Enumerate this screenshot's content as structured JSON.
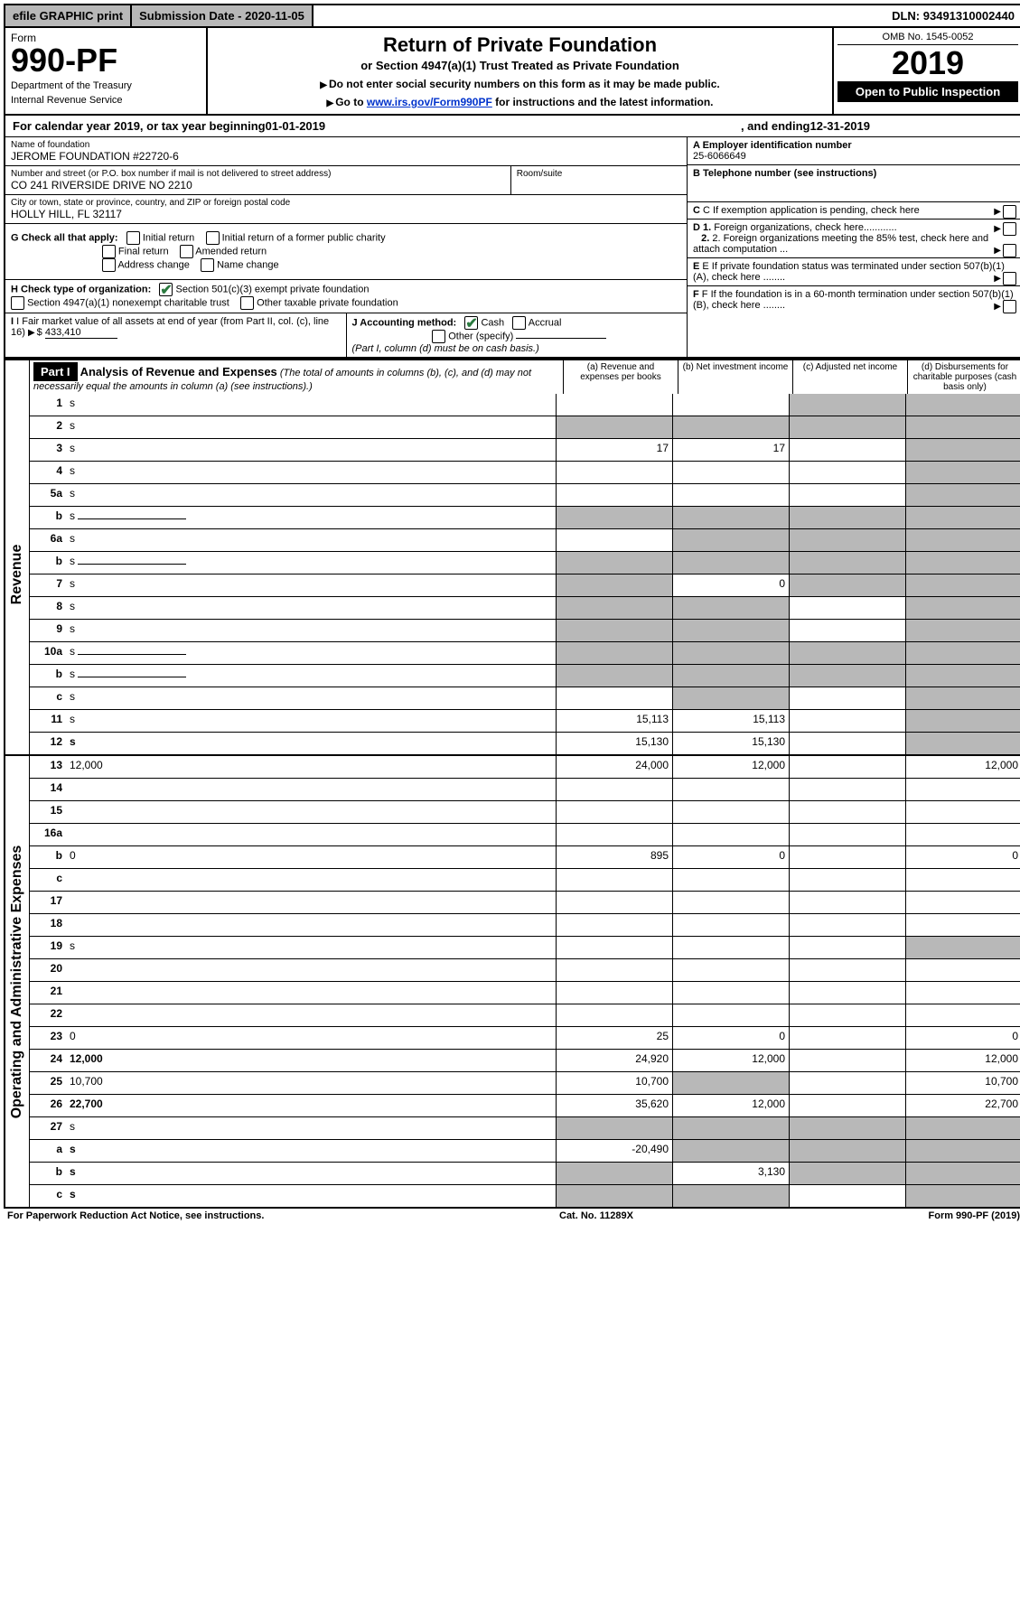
{
  "topbar": {
    "efile": "efile GRAPHIC print",
    "subdate_lbl": "Submission Date - ",
    "subdate": "2020-11-05",
    "dln_lbl": "DLN: ",
    "dln": "93491310002440"
  },
  "header": {
    "form": "Form",
    "number": "990-PF",
    "dept": "Department of the Treasury",
    "irs": "Internal Revenue Service",
    "title": "Return of Private Foundation",
    "subtitle": "or Section 4947(a)(1) Trust Treated as Private Foundation",
    "note1": "Do not enter social security numbers on this form as it may be made public.",
    "note2_pre": "Go to ",
    "note2_link": "www.irs.gov/Form990PF",
    "note2_post": " for instructions and the latest information.",
    "omb": "OMB No. 1545-0052",
    "year": "2019",
    "open": "Open to Public Inspection"
  },
  "cal": {
    "pre": "For calendar year 2019, or tax year beginning ",
    "begin": "01-01-2019",
    "mid": ", and ending ",
    "end": "12-31-2019"
  },
  "info": {
    "name_lbl": "Name of foundation",
    "name": "JEROME FOUNDATION #22720-6",
    "addr_lbl": "Number and street (or P.O. box number if mail is not delivered to street address)",
    "addr": "CO 241 RIVERSIDE DRIVE NO 2210",
    "room_lbl": "Room/suite",
    "city_lbl": "City or town, state or province, country, and ZIP or foreign postal code",
    "city": "HOLLY HILL, FL  32117",
    "a_lbl": "A Employer identification number",
    "a_val": "25-6066649",
    "b_lbl": "B Telephone number (see instructions)",
    "c_lbl": "C If exemption application is pending, check here",
    "d1_lbl": "D 1. Foreign organizations, check here............",
    "d2_lbl": "2. Foreign organizations meeting the 85% test, check here and attach computation ...",
    "e_lbl": "E  If private foundation status was terminated under section 507(b)(1)(A), check here ........",
    "f_lbl": "F  If the foundation is in a 60-month termination under section 507(b)(1)(B), check here ........",
    "g_lbl": "G Check all that apply:",
    "g_opts": [
      "Initial return",
      "Initial return of a former public charity",
      "Final return",
      "Amended return",
      "Address change",
      "Name change"
    ],
    "h_lbl": "H Check type of organization:",
    "h_opts": [
      "Section 501(c)(3) exempt private foundation",
      "Section 4947(a)(1) nonexempt charitable trust",
      "Other taxable private foundation"
    ],
    "i_lbl": "I Fair market value of all assets at end of year (from Part II, col. (c), line 16)",
    "i_val": "433,410",
    "j_lbl": "J Accounting method:",
    "j_opts": [
      "Cash",
      "Accrual",
      "Other (specify)"
    ],
    "j_note": "(Part I, column (d) must be on cash basis.)"
  },
  "part1": {
    "label": "Part I",
    "title": "Analysis of Revenue and Expenses",
    "subtitle": "(The total of amounts in columns (b), (c), and (d) may not necessarily equal the amounts in column (a) (see instructions).)",
    "cols": {
      "a": "(a)   Revenue and expenses per books",
      "b": "(b)  Net investment income",
      "c": "(c)  Adjusted net income",
      "d": "(d)  Disbursements for charitable purposes (cash basis only)"
    }
  },
  "sections": {
    "revenue": "Revenue",
    "expenses": "Operating and Administrative Expenses"
  },
  "lines": [
    {
      "n": "1",
      "d": "s",
      "a": "",
      "b": "",
      "c": "s"
    },
    {
      "n": "2",
      "d": "s",
      "a": "s",
      "b": "s",
      "c": "s",
      "nocells": true
    },
    {
      "n": "3",
      "d": "s",
      "a": "17",
      "b": "17",
      "c": ""
    },
    {
      "n": "4",
      "d": "s",
      "a": "",
      "b": "",
      "c": ""
    },
    {
      "n": "5a",
      "d": "s",
      "a": "",
      "b": "",
      "c": ""
    },
    {
      "n": "b",
      "d": "s",
      "a": "s",
      "b": "s",
      "c": "s",
      "sub": true
    },
    {
      "n": "6a",
      "d": "s",
      "a": "",
      "b": "s",
      "c": "s"
    },
    {
      "n": "b",
      "d": "s",
      "a": "s",
      "b": "s",
      "c": "s",
      "sub": true
    },
    {
      "n": "7",
      "d": "s",
      "a": "s",
      "b": "0",
      "c": "s"
    },
    {
      "n": "8",
      "d": "s",
      "a": "s",
      "b": "s",
      "c": ""
    },
    {
      "n": "9",
      "d": "s",
      "a": "s",
      "b": "s",
      "c": ""
    },
    {
      "n": "10a",
      "d": "s",
      "a": "s",
      "b": "s",
      "c": "s",
      "sub": true
    },
    {
      "n": "b",
      "d": "s",
      "a": "s",
      "b": "s",
      "c": "s",
      "sub": true
    },
    {
      "n": "c",
      "d": "s",
      "a": "",
      "b": "s",
      "c": ""
    },
    {
      "n": "11",
      "d": "s",
      "a": "15,113",
      "b": "15,113",
      "c": ""
    },
    {
      "n": "12",
      "d": "s",
      "a": "15,130",
      "b": "15,130",
      "c": "",
      "bold": true
    }
  ],
  "lines2": [
    {
      "n": "13",
      "d": "12,000",
      "a": "24,000",
      "b": "12,000",
      "c": ""
    },
    {
      "n": "14",
      "d": "",
      "a": "",
      "b": "",
      "c": ""
    },
    {
      "n": "15",
      "d": "",
      "a": "",
      "b": "",
      "c": ""
    },
    {
      "n": "16a",
      "d": "",
      "a": "",
      "b": "",
      "c": ""
    },
    {
      "n": "b",
      "d": "0",
      "a": "895",
      "b": "0",
      "c": ""
    },
    {
      "n": "c",
      "d": "",
      "a": "",
      "b": "",
      "c": ""
    },
    {
      "n": "17",
      "d": "",
      "a": "",
      "b": "",
      "c": ""
    },
    {
      "n": "18",
      "d": "",
      "a": "",
      "b": "",
      "c": ""
    },
    {
      "n": "19",
      "d": "s",
      "a": "",
      "b": "",
      "c": ""
    },
    {
      "n": "20",
      "d": "",
      "a": "",
      "b": "",
      "c": ""
    },
    {
      "n": "21",
      "d": "",
      "a": "",
      "b": "",
      "c": ""
    },
    {
      "n": "22",
      "d": "",
      "a": "",
      "b": "",
      "c": ""
    },
    {
      "n": "23",
      "d": "0",
      "a": "25",
      "b": "0",
      "c": ""
    },
    {
      "n": "24",
      "d": "12,000",
      "a": "24,920",
      "b": "12,000",
      "c": "",
      "bold": true
    },
    {
      "n": "25",
      "d": "10,700",
      "a": "10,700",
      "b": "s",
      "c": ""
    },
    {
      "n": "26",
      "d": "22,700",
      "a": "35,620",
      "b": "12,000",
      "c": "",
      "bold": true
    },
    {
      "n": "27",
      "d": "s",
      "a": "s",
      "b": "s",
      "c": "s"
    },
    {
      "n": "a",
      "d": "s",
      "a": "-20,490",
      "b": "s",
      "c": "s",
      "bold": true
    },
    {
      "n": "b",
      "d": "s",
      "a": "s",
      "b": "3,130",
      "c": "s",
      "bold": true
    },
    {
      "n": "c",
      "d": "s",
      "a": "s",
      "b": "s",
      "c": "",
      "bold": true
    }
  ],
  "footer": {
    "pra": "For Paperwork Reduction Act Notice, see instructions.",
    "cat": "Cat. No. 11289X",
    "form": "Form 990-PF (2019)"
  }
}
